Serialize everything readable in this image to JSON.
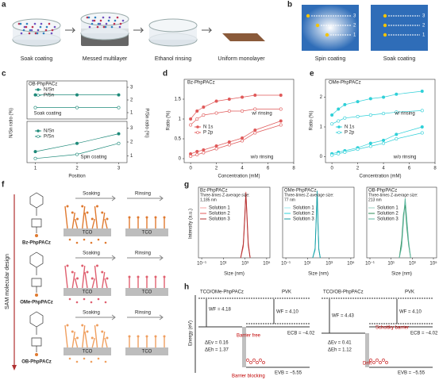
{
  "panel_labels": [
    "a",
    "b",
    "c",
    "d",
    "e",
    "f",
    "g",
    "h"
  ],
  "panel_a": {
    "steps": [
      "Soak coating",
      "Messed multilayer",
      "Ethanol rinsing",
      "Uniform monolayer"
    ]
  },
  "panel_b": {
    "methods": [
      "Spin coating",
      "Soak coating"
    ],
    "positions": [
      "3",
      "2",
      "1"
    ]
  },
  "panel_f": {
    "side_label": "SAM molecular design",
    "soaking": "Soaking",
    "rinsing": "Rinsing",
    "substrate": "TCO",
    "molecules": [
      "Bz-PhpPACz",
      "OMe-PhpPACz",
      "OB-PhpPACz"
    ]
  },
  "panel_h": {
    "energy_label": "Energy (eV)",
    "diagrams": [
      {
        "title": "TCO/OMe-PhpPACz",
        "pvk": "PVK",
        "wf_left": "WF = 4.18",
        "wf_right": "WF = 4.10",
        "ecb": "ECB = −4.02",
        "dev": "ΔEv = 0.16",
        "deh": "ΔEh = 1.37",
        "evb": "EVB = −5.55",
        "notes": [
          "Barrier free",
          "Barrier blocking"
        ]
      },
      {
        "title": "TCO/OB-PhpPACz",
        "pvk": "PVK",
        "wf_left": "WF = 4.43",
        "wf_right": "WF = 4.10",
        "ecb": "ECB = −4.02",
        "dev": "ΔEv = 0.41",
        "deh": "ΔEh = 1.12",
        "evb": "EVB = −5.55",
        "notes": [
          "Schottky barrier",
          "Drift"
        ]
      }
    ]
  },
  "chart_data": [
    {
      "type": "line",
      "title": "OB-PhpPACz",
      "annotations": [
        "Soak coating"
      ],
      "ylabel": "N/Sn ratio (%)",
      "y2label": "P/Sn ratio (%)",
      "x": [
        1,
        2,
        3
      ],
      "xlim": [
        0.8,
        3.2
      ],
      "ylim": [
        0.5,
        3.5
      ],
      "yticks": [
        1,
        2,
        3
      ],
      "ytick_side": "right",
      "series": [
        {
          "name": "N/Sn",
          "color": "#1f8a7a",
          "marker": "filled",
          "values": [
            2.4,
            2.4,
            2.4
          ]
        },
        {
          "name": "P/Sn",
          "color": "#1f8a7a",
          "marker": "open",
          "values": [
            1.4,
            1.4,
            1.4
          ]
        }
      ]
    },
    {
      "type": "line",
      "annotations": [
        "Spin coating"
      ],
      "xlabel": "Position",
      "x": [
        1,
        2,
        3
      ],
      "xlim": [
        0.8,
        3.2
      ],
      "xticks": [
        1,
        2,
        3
      ],
      "ylim": [
        0.5,
        3.5
      ],
      "yticks": [
        1,
        2,
        3
      ],
      "ytick_side": "right",
      "series": [
        {
          "name": "N/Sn",
          "color": "#1f8a7a",
          "marker": "filled",
          "values": [
            1.3,
            1.9,
            2.6
          ]
        },
        {
          "name": "P/Sn",
          "color": "#1f8a7a",
          "marker": "open",
          "values": [
            0.8,
            1.1,
            1.9
          ]
        }
      ]
    },
    {
      "type": "line",
      "title": "Bz-PhpPACz",
      "annotations": [
        "w/ rinsing",
        "w/o rinsing"
      ],
      "xlabel": "Concentration (mM)",
      "ylabel": "Ratio (%)",
      "x": [
        0,
        0.5,
        1,
        2,
        3,
        4,
        5,
        7
      ],
      "xlim": [
        -0.5,
        8
      ],
      "xticks": [
        0,
        2,
        4,
        6,
        8
      ],
      "ylim": [
        -0.1,
        2
      ],
      "yticks": [
        0,
        0.5,
        1,
        1.5
      ],
      "series": [
        {
          "name": "N 1s",
          "color": "#e05a5a",
          "marker": "filled",
          "values": [
            1.0,
            1.2,
            1.3,
            1.45,
            1.5,
            1.55,
            1.6,
            1.6
          ]
        },
        {
          "name": "P 2p",
          "color": "#e05a5a",
          "marker": "open",
          "values": [
            0.85,
            1.0,
            1.1,
            1.15,
            1.2,
            1.2,
            1.25,
            1.25
          ]
        },
        {
          "color": "#e05a5a",
          "marker": "filled",
          "values": [
            0.12,
            0.18,
            0.22,
            0.32,
            0.42,
            0.52,
            0.72,
            0.95
          ]
        },
        {
          "color": "#e05a5a",
          "marker": "open",
          "values": [
            0.06,
            0.1,
            0.15,
            0.25,
            0.35,
            0.45,
            0.65,
            0.85
          ]
        }
      ]
    },
    {
      "type": "line",
      "title": "OMe-PhpPACz",
      "annotations": [
        "w/ rinsing",
        "w/o rinsing"
      ],
      "xlabel": "Concentration (mM)",
      "ylabel": "Ratio (%)",
      "x": [
        0,
        0.5,
        1,
        2,
        3,
        4,
        5,
        7
      ],
      "xlim": [
        -0.5,
        8
      ],
      "xticks": [
        0,
        2,
        4,
        6,
        8
      ],
      "ylim": [
        -0.2,
        2.6
      ],
      "yticks": [
        0,
        1,
        2
      ],
      "series": [
        {
          "name": "N 1s",
          "color": "#2fd0d8",
          "marker": "filled",
          "values": [
            1.4,
            1.6,
            1.75,
            1.85,
            1.95,
            2.0,
            2.1,
            2.2
          ]
        },
        {
          "name": "P 2p",
          "color": "#2fd0d8",
          "marker": "open",
          "values": [
            1.1,
            1.2,
            1.3,
            1.35,
            1.4,
            1.45,
            1.5,
            1.55
          ]
        },
        {
          "color": "#2fd0d8",
          "marker": "filled",
          "values": [
            0.1,
            0.15,
            0.2,
            0.3,
            0.45,
            0.55,
            0.75,
            1.0
          ]
        },
        {
          "color": "#2fd0d8",
          "marker": "open",
          "values": [
            0.05,
            0.1,
            0.15,
            0.25,
            0.35,
            0.45,
            0.6,
            0.8
          ]
        }
      ]
    },
    {
      "type": "line",
      "xscale": "log",
      "title": "Bz-PhpPACz",
      "subtitle": "Three-times Z-average size:",
      "note": "1,185 nm",
      "xlabel": "Size (nm)",
      "ylabel": "Intensity (a.u.)",
      "x": [
        400,
        700,
        1000,
        1200,
        1500,
        2000,
        3000
      ],
      "xlim": [
        0.05,
        200000
      ],
      "xticks": [
        {
          "value": 0.1,
          "label": "10⁻¹"
        },
        {
          "value": 10,
          "label": "10¹"
        },
        {
          "value": 1000,
          "label": "10³"
        },
        {
          "value": 100000,
          "label": "10⁵"
        }
      ],
      "ylim": [
        0,
        16
      ],
      "series": [
        {
          "name": "Solution 1",
          "color": "#f4a0a0",
          "values": [
            0,
            3,
            10,
            15,
            10,
            3,
            0
          ]
        },
        {
          "name": "Solution 2",
          "color": "#e05a5a",
          "values": [
            0,
            2.5,
            9.5,
            14.5,
            10.5,
            3.5,
            0
          ]
        },
        {
          "name": "Solution 3",
          "color": "#b03030",
          "values": [
            0,
            3.2,
            10.5,
            14.8,
            9.5,
            2.8,
            0
          ]
        }
      ]
    },
    {
      "type": "line",
      "xscale": "log",
      "title": "OMe-PhpPACz",
      "subtitle": "Three-times Z-average size:",
      "note": "77 nm",
      "xlabel": "Size (nm)",
      "x": [
        30,
        50,
        65,
        77,
        90,
        110,
        150
      ],
      "xlim": [
        0.05,
        200000
      ],
      "xticks": [
        {
          "value": 0.1,
          "label": "10⁻¹"
        },
        {
          "value": 10,
          "label": "10¹"
        },
        {
          "value": 1000,
          "label": "10³"
        },
        {
          "value": 100000,
          "label": "10⁵"
        }
      ],
      "ylim": [
        0,
        16
      ],
      "series": [
        {
          "name": "Solution 1",
          "color": "#a0eef0",
          "values": [
            0,
            2,
            9,
            15,
            9,
            2,
            0
          ]
        },
        {
          "name": "Solution 2",
          "color": "#2fd0d8",
          "values": [
            0,
            2.2,
            9.5,
            14.6,
            8.8,
            2.1,
            0
          ]
        },
        {
          "name": "Solution 3",
          "color": "#1a9aa0",
          "values": [
            0,
            1.8,
            8.8,
            15.2,
            9.2,
            1.9,
            0
          ]
        }
      ]
    },
    {
      "type": "line",
      "xscale": "log",
      "title": "OB-PhpPACz",
      "subtitle": "Three-times Z-average size:",
      "note": "213 nm",
      "xlabel": "Size (nm)",
      "x": [
        60,
        100,
        150,
        213,
        300,
        450,
        700
      ],
      "xlim": [
        0.05,
        200000
      ],
      "xticks": [
        {
          "value": 0.1,
          "label": "10⁻¹"
        },
        {
          "value": 10,
          "label": "10¹"
        },
        {
          "value": 1000,
          "label": "10³"
        },
        {
          "value": 100000,
          "label": "10⁵"
        }
      ],
      "ylim": [
        0,
        16
      ],
      "series": [
        {
          "name": "Solution 1",
          "color": "#9ad0c2",
          "values": [
            0,
            3,
            8,
            13,
            9,
            4,
            0
          ]
        },
        {
          "name": "Solution 2",
          "color": "#2e8b57",
          "values": [
            0,
            4,
            10,
            12,
            7,
            3,
            0
          ]
        },
        {
          "name": "Solution 3",
          "color": "#5fb8a0",
          "values": [
            0,
            2.5,
            9,
            13.5,
            8.5,
            3.5,
            0
          ]
        }
      ]
    }
  ]
}
